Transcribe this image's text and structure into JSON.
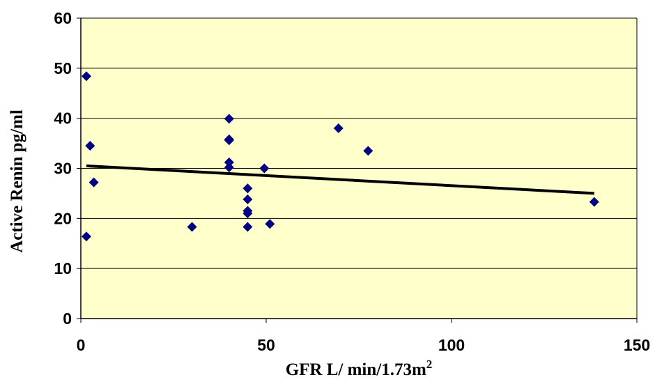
{
  "chart_data": {
    "type": "scatter",
    "title": "",
    "xlabel": "GFR L/ min/1.73m",
    "xlabel_sup": "2",
    "ylabel": "Active Renin pg/ml",
    "xlim": [
      0,
      150
    ],
    "ylim": [
      0,
      60
    ],
    "xticks": [
      0,
      50,
      100,
      150
    ],
    "yticks": [
      0,
      10,
      20,
      30,
      40,
      50,
      60
    ],
    "grid": {
      "y": true,
      "x": false
    },
    "legend": "none",
    "colors": {
      "plot_bg": "#FFFFCC",
      "marker": "#000080",
      "trendline": "#000000",
      "grid": "#000000"
    },
    "series": [
      {
        "marker": "diamond",
        "points": [
          {
            "x": 1.5,
            "y": 48.4
          },
          {
            "x": 2.5,
            "y": 34.5
          },
          {
            "x": 3.5,
            "y": 27.2
          },
          {
            "x": 1.5,
            "y": 16.4
          },
          {
            "x": 30,
            "y": 18.3
          },
          {
            "x": 40,
            "y": 39.9
          },
          {
            "x": 40,
            "y": 35.8
          },
          {
            "x": 40,
            "y": 35.6
          },
          {
            "x": 40,
            "y": 31.2
          },
          {
            "x": 40,
            "y": 30.2
          },
          {
            "x": 45,
            "y": 26.0
          },
          {
            "x": 45,
            "y": 23.8
          },
          {
            "x": 45,
            "y": 21.5
          },
          {
            "x": 45,
            "y": 21.0
          },
          {
            "x": 45,
            "y": 18.3
          },
          {
            "x": 49.5,
            "y": 30.0
          },
          {
            "x": 51,
            "y": 18.9
          },
          {
            "x": 69.5,
            "y": 38.0
          },
          {
            "x": 77.5,
            "y": 33.5
          },
          {
            "x": 138.5,
            "y": 23.3
          }
        ]
      }
    ],
    "trendline": {
      "x": [
        1.5,
        138.5
      ],
      "y": [
        30.5,
        25.0
      ]
    }
  }
}
